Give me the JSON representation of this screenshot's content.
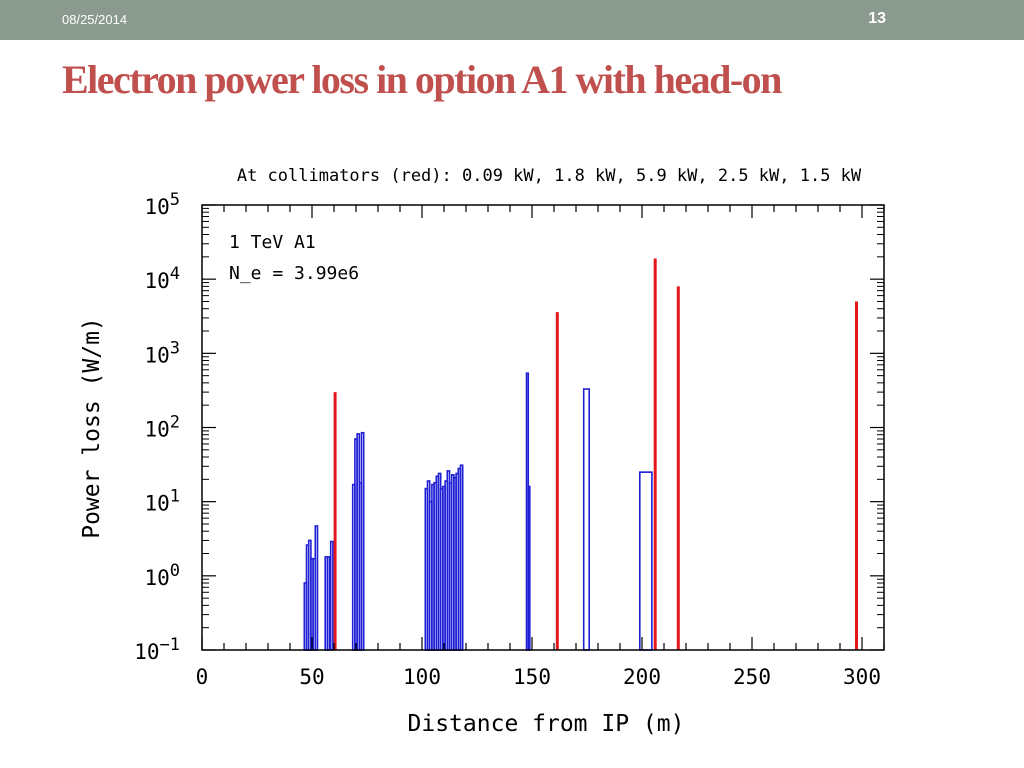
{
  "slide": {
    "date": "08/25/2014",
    "page_number": "13",
    "title": "Electron power loss in option A1 with head-on"
  },
  "chart_data": {
    "type": "bar",
    "title": "At collimators (red): 0.09 kW, 1.8 kW, 5.9 kW, 2.5 kW, 1.5 kW",
    "xlabel": "Distance from IP (m)",
    "ylabel": "Power loss (W/m)",
    "xlim": [
      0,
      310
    ],
    "ylim": [
      0.1,
      100000
    ],
    "y_scale": "log",
    "x_ticks": [
      "0",
      "50",
      "100",
      "150",
      "200",
      "250",
      "300"
    ],
    "y_ticks": [
      {
        "base": "10",
        "exp": "5"
      },
      {
        "base": "10",
        "exp": "4"
      },
      {
        "base": "10",
        "exp": "3"
      },
      {
        "base": "10",
        "exp": "2"
      },
      {
        "base": "10",
        "exp": "1"
      },
      {
        "base": "10",
        "exp": "0"
      },
      {
        "base": "10",
        "exp": "−1"
      }
    ],
    "annotation": [
      "1 TeV A1",
      "N_e = 3.99e6"
    ],
    "series": [
      {
        "color": "#1f1fd6",
        "bars": [
          {
            "x0": 46.5,
            "x1": 47.5,
            "y": 0.8
          },
          {
            "x0": 47.5,
            "x1": 48.5,
            "y": 2.6
          },
          {
            "x0": 48.5,
            "x1": 49.5,
            "y": 3.0
          },
          {
            "x0": 49.5,
            "x1": 50.5,
            "y": 1.7
          },
          {
            "x0": 50.5,
            "x1": 51.5,
            "y": 1.7
          },
          {
            "x0": 51.5,
            "x1": 52.5,
            "y": 4.7
          },
          {
            "x0": 56.0,
            "x1": 57.0,
            "y": 1.8
          },
          {
            "x0": 57.0,
            "x1": 58.0,
            "y": 1.8
          },
          {
            "x0": 58.5,
            "x1": 59.5,
            "y": 2.9
          },
          {
            "x0": 68.5,
            "x1": 69.5,
            "y": 17
          },
          {
            "x0": 69.5,
            "x1": 70.5,
            "y": 70
          },
          {
            "x0": 70.5,
            "x1": 71.5,
            "y": 82
          },
          {
            "x0": 71.5,
            "x1": 72.5,
            "y": 18
          },
          {
            "x0": 72.5,
            "x1": 73.5,
            "y": 85
          },
          {
            "x0": 101.5,
            "x1": 102.5,
            "y": 15
          },
          {
            "x0": 102.5,
            "x1": 103.5,
            "y": 19
          },
          {
            "x0": 103.5,
            "x1": 104.5,
            "y": 10
          },
          {
            "x0": 104.5,
            "x1": 105.5,
            "y": 17
          },
          {
            "x0": 105.5,
            "x1": 106.5,
            "y": 18
          },
          {
            "x0": 106.5,
            "x1": 107.5,
            "y": 22
          },
          {
            "x0": 107.5,
            "x1": 108.5,
            "y": 24
          },
          {
            "x0": 108.5,
            "x1": 109.5,
            "y": 15
          },
          {
            "x0": 109.5,
            "x1": 110.5,
            "y": 16
          },
          {
            "x0": 110.5,
            "x1": 111.5,
            "y": 19
          },
          {
            "x0": 111.5,
            "x1": 112.5,
            "y": 26
          },
          {
            "x0": 112.5,
            "x1": 113.5,
            "y": 18
          },
          {
            "x0": 113.5,
            "x1": 114.5,
            "y": 23
          },
          {
            "x0": 114.5,
            "x1": 115.5,
            "y": 21
          },
          {
            "x0": 115.5,
            "x1": 116.5,
            "y": 24
          },
          {
            "x0": 116.5,
            "x1": 117.5,
            "y": 28
          },
          {
            "x0": 117.5,
            "x1": 118.5,
            "y": 31
          },
          {
            "x0": 147.5,
            "x1": 148.3,
            "y": 540
          },
          {
            "x0": 148.3,
            "x1": 149.0,
            "y": 16
          },
          {
            "x0": 173.5,
            "x1": 176.0,
            "y": 330
          },
          {
            "x0": 199.0,
            "x1": 204.5,
            "y": 25
          }
        ]
      },
      {
        "color": "#e3161b",
        "bars": [
          {
            "x": 60.5,
            "y": 300
          },
          {
            "x": 161.5,
            "y": 3600
          },
          {
            "x": 206.0,
            "y": 19000
          },
          {
            "x": 216.5,
            "y": 8000
          },
          {
            "x": 297.5,
            "y": 5000
          }
        ]
      }
    ]
  }
}
